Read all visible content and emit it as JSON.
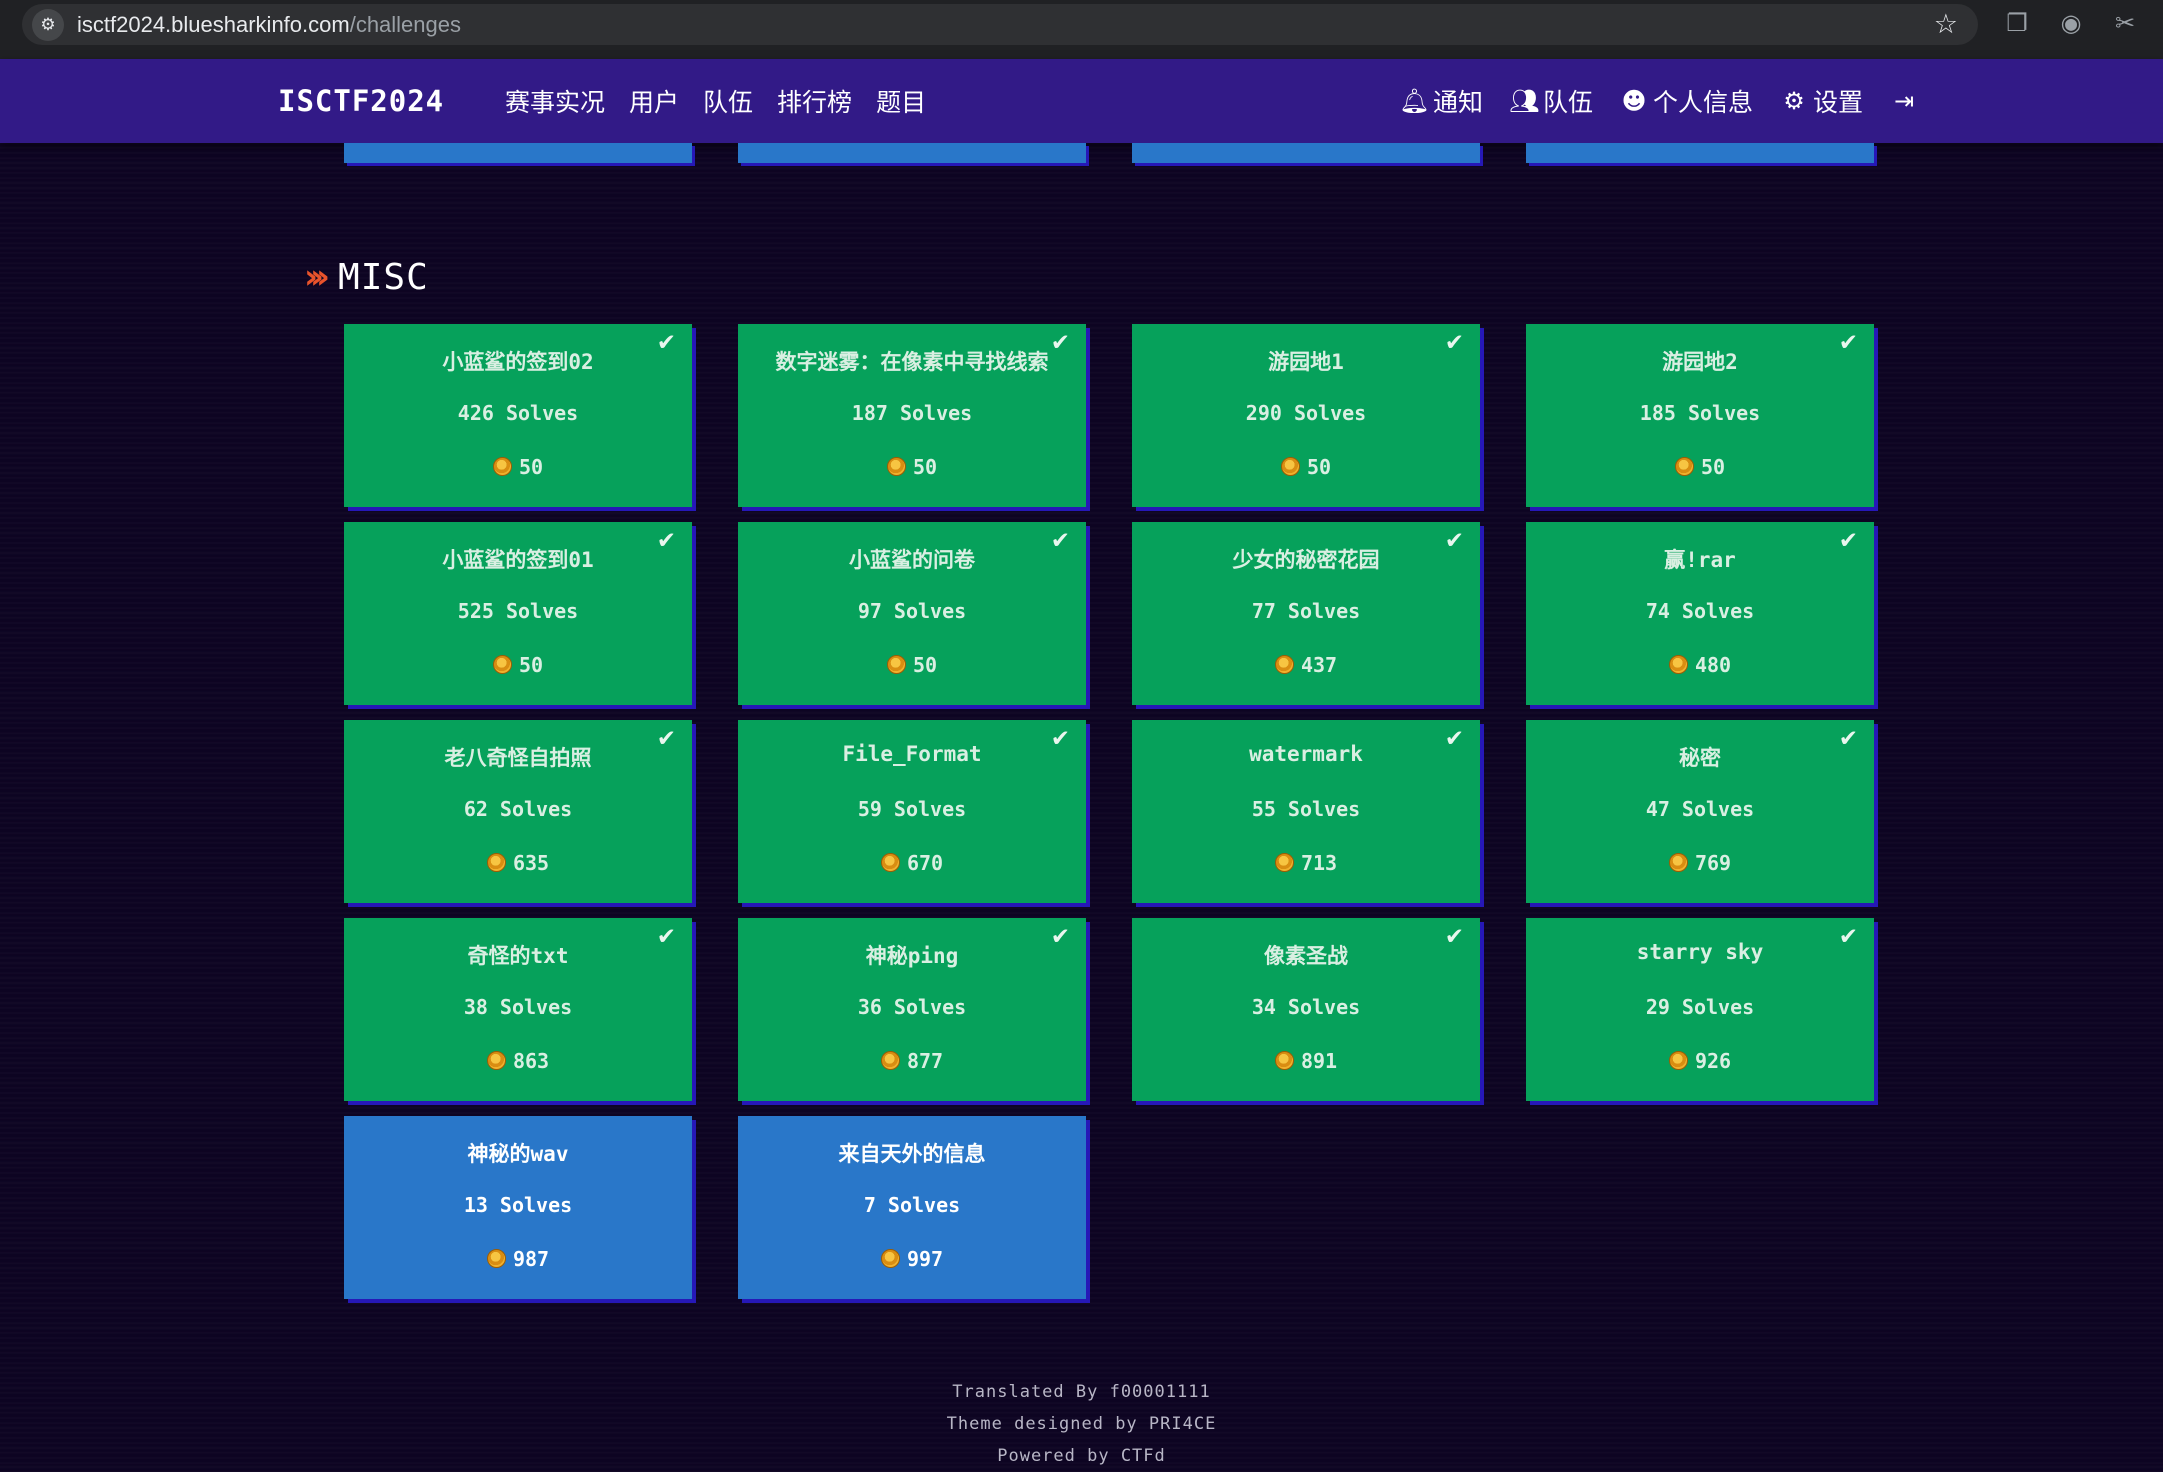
{
  "browser": {
    "url_host": "isctf2024.bluesharkinfo.com",
    "url_path": "/challenges"
  },
  "navbar": {
    "brand": "ISCTF2024",
    "left_links": [
      "赛事实况",
      "用户",
      "队伍",
      "排行榜",
      "题目"
    ],
    "right_links": [
      {
        "label": "通知",
        "icon": "bell-icon"
      },
      {
        "label": "队伍",
        "icon": "users-icon"
      },
      {
        "label": "个人信息",
        "icon": "user-circle-icon"
      },
      {
        "label": "设置",
        "icon": "gears-icon"
      },
      {
        "label": "",
        "icon": "sign-out-icon"
      }
    ]
  },
  "section": {
    "title": "MISC"
  },
  "colors": {
    "solved": "#06a15b",
    "unsolved": "#2977c9",
    "navbar": "#321a87",
    "accent": "#e8532b"
  },
  "challenges": [
    {
      "name": "小蓝鲨的签到02",
      "solves": "426 Solves",
      "points": "50",
      "solved": true
    },
    {
      "name": "数字迷雾：在像素中寻找线索",
      "solves": "187 Solves",
      "points": "50",
      "solved": true
    },
    {
      "name": "游园地1",
      "solves": "290 Solves",
      "points": "50",
      "solved": true
    },
    {
      "name": "游园地2",
      "solves": "185 Solves",
      "points": "50",
      "solved": true
    },
    {
      "name": "小蓝鲨的签到01",
      "solves": "525 Solves",
      "points": "50",
      "solved": true
    },
    {
      "name": "小蓝鲨的问卷",
      "solves": "97 Solves",
      "points": "50",
      "solved": true
    },
    {
      "name": "少女的秘密花园",
      "solves": "77 Solves",
      "points": "437",
      "solved": true
    },
    {
      "name": "赢!rar",
      "solves": "74 Solves",
      "points": "480",
      "solved": true
    },
    {
      "name": "老八奇怪自拍照",
      "solves": "62 Solves",
      "points": "635",
      "solved": true
    },
    {
      "name": "File_Format",
      "solves": "59 Solves",
      "points": "670",
      "solved": true
    },
    {
      "name": "watermark",
      "solves": "55 Solves",
      "points": "713",
      "solved": true
    },
    {
      "name": "秘密",
      "solves": "47 Solves",
      "points": "769",
      "solved": true
    },
    {
      "name": "奇怪的txt",
      "solves": "38 Solves",
      "points": "863",
      "solved": true
    },
    {
      "name": "神秘ping",
      "solves": "36 Solves",
      "points": "877",
      "solved": true
    },
    {
      "name": "像素圣战",
      "solves": "34 Solves",
      "points": "891",
      "solved": true
    },
    {
      "name": "starry sky",
      "solves": "29 Solves",
      "points": "926",
      "solved": true
    },
    {
      "name": "神秘的wav",
      "solves": "13 Solves",
      "points": "987",
      "solved": false
    },
    {
      "name": "来自天外的信息",
      "solves": "7 Solves",
      "points": "997",
      "solved": false
    }
  ],
  "footer": {
    "translated": "Translated By f00001111",
    "theme": "Theme designed by PRI4CE",
    "powered": "Powered by CTFd"
  }
}
